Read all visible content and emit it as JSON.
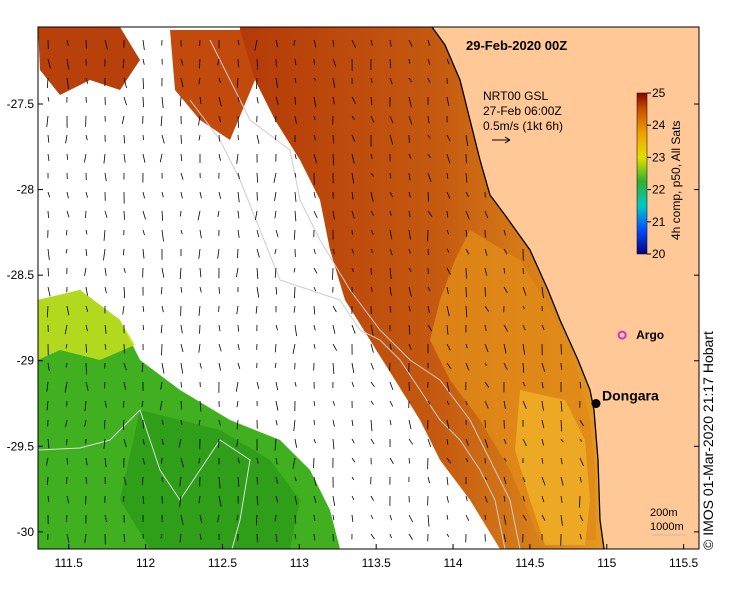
{
  "map": {
    "title": "29-Feb-2020 00Z",
    "x_ticks": [
      "111.5",
      "112",
      "112.5",
      "113",
      "113.5",
      "114",
      "114.5",
      "115",
      "115.5"
    ],
    "y_ticks": [
      "-27.5",
      "-28",
      "-28.5",
      "-29",
      "-29.5",
      "-30"
    ],
    "lon_range": [
      111.3,
      115.6
    ],
    "lat_range": [
      -27.05,
      -30.1
    ]
  },
  "current_legend": {
    "source": "NRT00 GSL",
    "time": "27-Feb 06:00Z",
    "scale": "0.5m/s (1kt 6h)"
  },
  "colorbar": {
    "label": "4h comp, p50, All Sats",
    "ticks": [
      "25",
      "24",
      "23",
      "22",
      "21",
      "20"
    ],
    "min": 20,
    "max": 25
  },
  "markers": {
    "argo": {
      "label": "Argo",
      "lon": 115.1,
      "lat": -28.85,
      "color": "#cc33cc"
    },
    "dongara": {
      "label": "Dongara",
      "lon": 114.93,
      "lat": -29.25
    }
  },
  "isobaths": [
    "200m",
    "1000m"
  ],
  "credit": "© IMOS 01-Mar-2020 21:17 Hobart",
  "colors": {
    "land": "#ffc896",
    "warm": "#a02800",
    "cool": "#40b020"
  }
}
